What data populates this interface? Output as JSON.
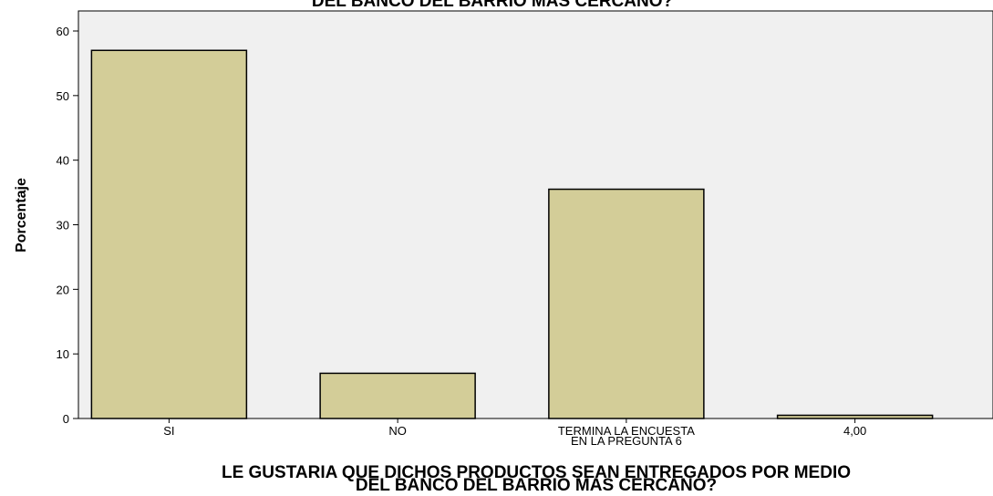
{
  "chart_data": {
    "type": "bar",
    "title": "DEL BANCO DEL BARRIO MAS CERCANO?",
    "categories": [
      [
        "SI"
      ],
      [
        "NO"
      ],
      [
        "TERMINA LA ENCUESTA",
        "EN LA PREGUNTA 6"
      ],
      [
        "4,00"
      ]
    ],
    "values": [
      57.0,
      7.0,
      35.5,
      0.5
    ],
    "ylabel": "Porcentaje",
    "xlabel": [
      "LE GUSTARIA QUE DICHOS PRODUCTOS SEAN ENTREGADOS POR MEDIO",
      "DEL BANCO DEL BARRIO MAS CERCANO?"
    ],
    "ylim": [
      0,
      60
    ],
    "yticks": [
      0,
      10,
      20,
      30,
      40,
      50,
      60
    ],
    "grid": false,
    "colors": {
      "bar_fill": "#d3cd98",
      "bar_stroke": "#000000",
      "plot_bg": "#f0f0f0"
    }
  }
}
